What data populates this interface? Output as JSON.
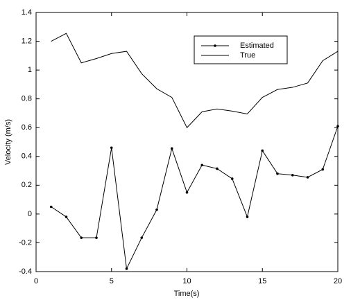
{
  "chart_data": {
    "type": "line",
    "x_label": "Time(s)",
    "y_label": "Velocity (m/s)",
    "x": [
      1,
      2,
      3,
      4,
      5,
      6,
      7,
      8,
      9,
      10,
      11,
      12,
      13,
      14,
      15,
      16,
      17,
      18,
      19,
      20
    ],
    "series": [
      {
        "name": "Estimated",
        "color": "#000000",
        "marker": true,
        "values": [
          0.05,
          -0.02,
          -0.165,
          -0.165,
          0.46,
          -0.38,
          -0.165,
          0.03,
          0.455,
          0.15,
          0.34,
          0.315,
          0.245,
          -0.02,
          0.44,
          0.28,
          0.27,
          0.255,
          0.31,
          0.61
        ]
      },
      {
        "name": "True",
        "color": "#000000",
        "marker": false,
        "values": [
          1.2,
          1.255,
          1.05,
          1.08,
          1.115,
          1.13,
          0.975,
          0.87,
          0.81,
          0.6,
          0.71,
          0.73,
          0.715,
          0.695,
          0.81,
          0.865,
          0.88,
          0.91,
          1.065,
          1.13
        ]
      }
    ],
    "xlim": [
      0,
      20
    ],
    "xticks": [
      0,
      5,
      10,
      15,
      20
    ],
    "ylim": [
      -0.4,
      1.4
    ],
    "yticks": [
      -0.4,
      -0.2,
      0,
      0.2,
      0.4,
      0.6,
      0.8,
      1,
      1.2,
      1.4
    ],
    "legend": "upper right"
  }
}
